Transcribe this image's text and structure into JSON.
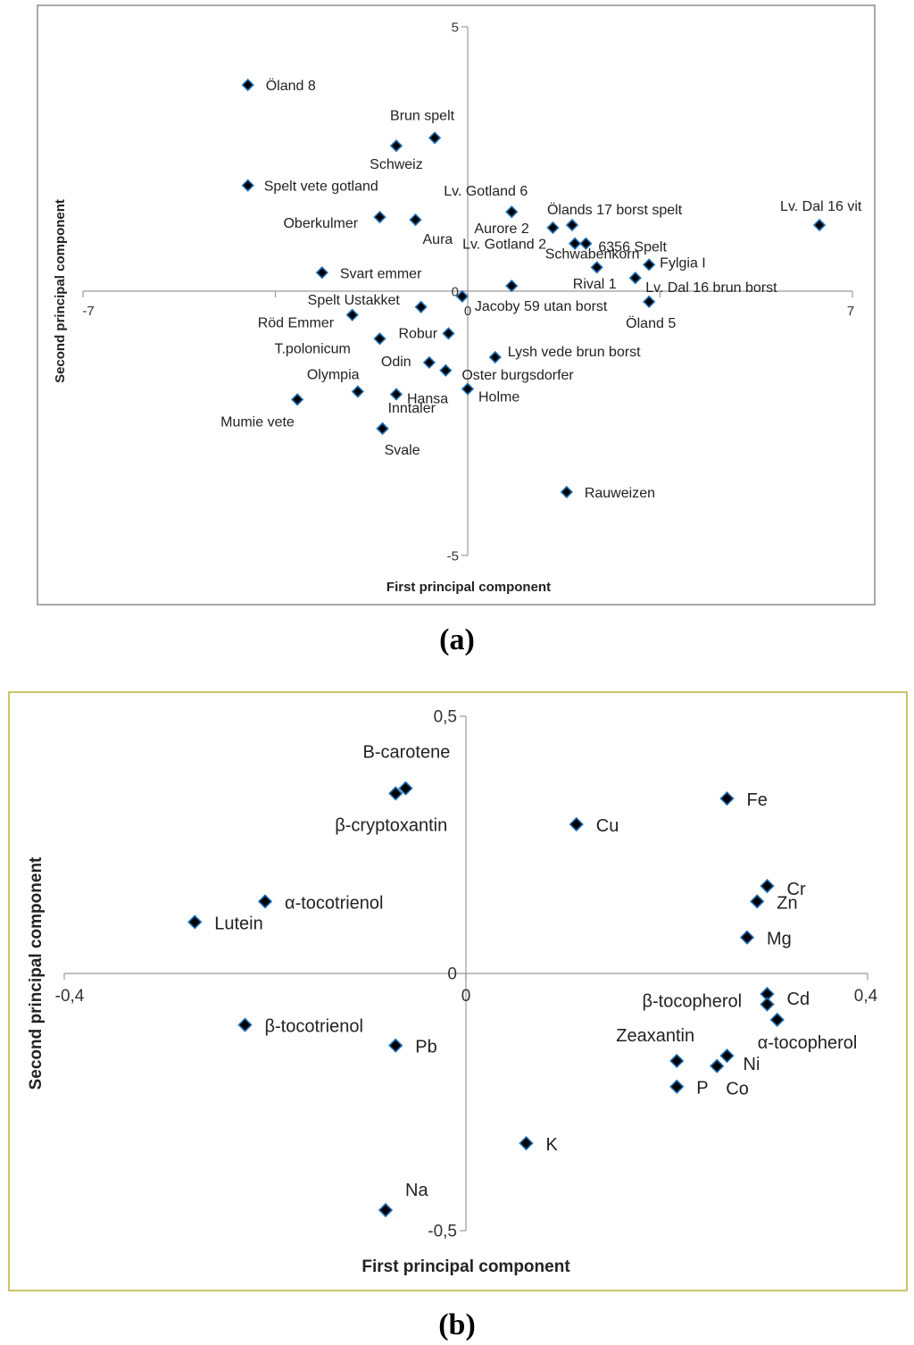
{
  "chart_data": [
    {
      "type": "scatter",
      "caption": "(a)",
      "xlabel": "First principal component",
      "ylabel": "Second principal component",
      "xlim": [
        -7,
        7
      ],
      "ylim": [
        -5,
        5
      ],
      "x_tick_labels": [
        "-7",
        "0",
        "7"
      ],
      "y_tick_labels": [
        "5",
        "0",
        "-5"
      ],
      "grid": false,
      "marker_color": "#000000",
      "marker_edge_color": "#1f6fb4",
      "points": [
        {
          "label": "Öland 8",
          "x": -4.0,
          "y": 3.9
        },
        {
          "label": "Brun spelt",
          "x": -0.6,
          "y": 2.9
        },
        {
          "label": "Schweiz",
          "x": -1.3,
          "y": 2.75
        },
        {
          "label": "Spelt vete gotland",
          "x": -4.0,
          "y": 2.0
        },
        {
          "label": "Lv. Gotland 6",
          "x": 0.8,
          "y": 1.5
        },
        {
          "label": "Ölands 17 borst spelt",
          "x": 1.9,
          "y": 1.25
        },
        {
          "label": "Lv. Dal 16 vit",
          "x": 6.4,
          "y": 1.25
        },
        {
          "label": "Oberkulmer",
          "x": -1.6,
          "y": 1.4
        },
        {
          "label": "Aura",
          "x": -0.95,
          "y": 1.35
        },
        {
          "label": "Aurore 2",
          "x": 1.55,
          "y": 1.2
        },
        {
          "label": "Lv. Gotland 2",
          "x": 1.95,
          "y": 0.9
        },
        {
          "label": "6356 Spelt",
          "x": 2.15,
          "y": 0.9
        },
        {
          "label": "Fylgia I",
          "x": 3.3,
          "y": 0.5
        },
        {
          "label": "Svart emmer",
          "x": -2.65,
          "y": 0.35
        },
        {
          "label": "Schwabenkorn",
          "x": 2.35,
          "y": 0.45
        },
        {
          "label": "Rival 1",
          "x": 3.05,
          "y": 0.25
        },
        {
          "label": "Lv. Dal 16 brun borst",
          "x": 0.8,
          "y": 0.1
        },
        {
          "label": "Spelt Ustakket",
          "x": -0.85,
          "y": -0.3
        },
        {
          "label": "Jacoby 59 utan borst",
          "x": -0.1,
          "y": -0.1
        },
        {
          "label": "Öland 5",
          "x": 3.3,
          "y": -0.2
        },
        {
          "label": "Röd Emmer",
          "x": -2.1,
          "y": -0.45
        },
        {
          "label": "Robur",
          "x": -0.35,
          "y": -0.8
        },
        {
          "label": "T.polonicum",
          "x": -1.6,
          "y": -0.9
        },
        {
          "label": "Lysh vede brun borst",
          "x": 0.5,
          "y": -1.25
        },
        {
          "label": "Odin",
          "x": -0.7,
          "y": -1.35
        },
        {
          "label": "Oster burgsdorfer",
          "x": -0.4,
          "y": -1.5
        },
        {
          "label": "Olympia",
          "x": -2.0,
          "y": -1.9
        },
        {
          "label": "Hansa",
          "x": -1.3,
          "y": -1.95
        },
        {
          "label": "Holme",
          "x": 0.0,
          "y": -1.85
        },
        {
          "label": "Mumie vete",
          "x": -3.1,
          "y": -2.05
        },
        {
          "label": "Inntaler",
          "x": -1.55,
          "y": -2.6
        },
        {
          "label": "Svale",
          "x": -1.55,
          "y": -2.6
        },
        {
          "label": "Rauweizen",
          "x": 1.8,
          "y": -3.8
        }
      ]
    },
    {
      "type": "scatter",
      "caption": "(b)",
      "xlabel": "First principal component",
      "ylabel": "Second principal component",
      "xlim": [
        -0.4,
        0.4
      ],
      "ylim": [
        -0.5,
        0.5
      ],
      "x_tick_labels": [
        "-0,4",
        "0",
        "0,4"
      ],
      "y_tick_labels": [
        "0,5",
        "0",
        "-0,5"
      ],
      "grid": false,
      "marker_color": "#000000",
      "marker_edge_color": "#1f6fb4",
      "points": [
        {
          "label": "B-carotene",
          "x": -0.06,
          "y": 0.36
        },
        {
          "label": "β-cryptoxantin",
          "x": -0.07,
          "y": 0.35
        },
        {
          "label": "Cu",
          "x": 0.11,
          "y": 0.29
        },
        {
          "label": "Fe",
          "x": 0.26,
          "y": 0.34
        },
        {
          "label": "α-tocotrienol",
          "x": -0.2,
          "y": 0.14
        },
        {
          "label": "Lutein",
          "x": -0.27,
          "y": 0.1
        },
        {
          "label": "Cr",
          "x": 0.3,
          "y": 0.17
        },
        {
          "label": "Zn",
          "x": 0.29,
          "y": 0.14
        },
        {
          "label": "Mg",
          "x": 0.28,
          "y": 0.07
        },
        {
          "label": "Cd",
          "x": 0.3,
          "y": -0.04
        },
        {
          "label": "β-tocopherol",
          "x": 0.3,
          "y": -0.06
        },
        {
          "label": "α-tocopherol",
          "x": 0.31,
          "y": -0.09
        },
        {
          "label": "β-tocotrienol",
          "x": -0.22,
          "y": -0.1
        },
        {
          "label": "Pb",
          "x": -0.07,
          "y": -0.14
        },
        {
          "label": "Zeaxantin",
          "x": 0.21,
          "y": -0.17
        },
        {
          "label": "Ni",
          "x": 0.26,
          "y": -0.16
        },
        {
          "label": "P",
          "x": 0.21,
          "y": -0.22
        },
        {
          "label": "Co",
          "x": 0.25,
          "y": -0.18
        },
        {
          "label": "K",
          "x": 0.06,
          "y": -0.33
        },
        {
          "label": "Na",
          "x": -0.08,
          "y": -0.46
        }
      ]
    }
  ]
}
